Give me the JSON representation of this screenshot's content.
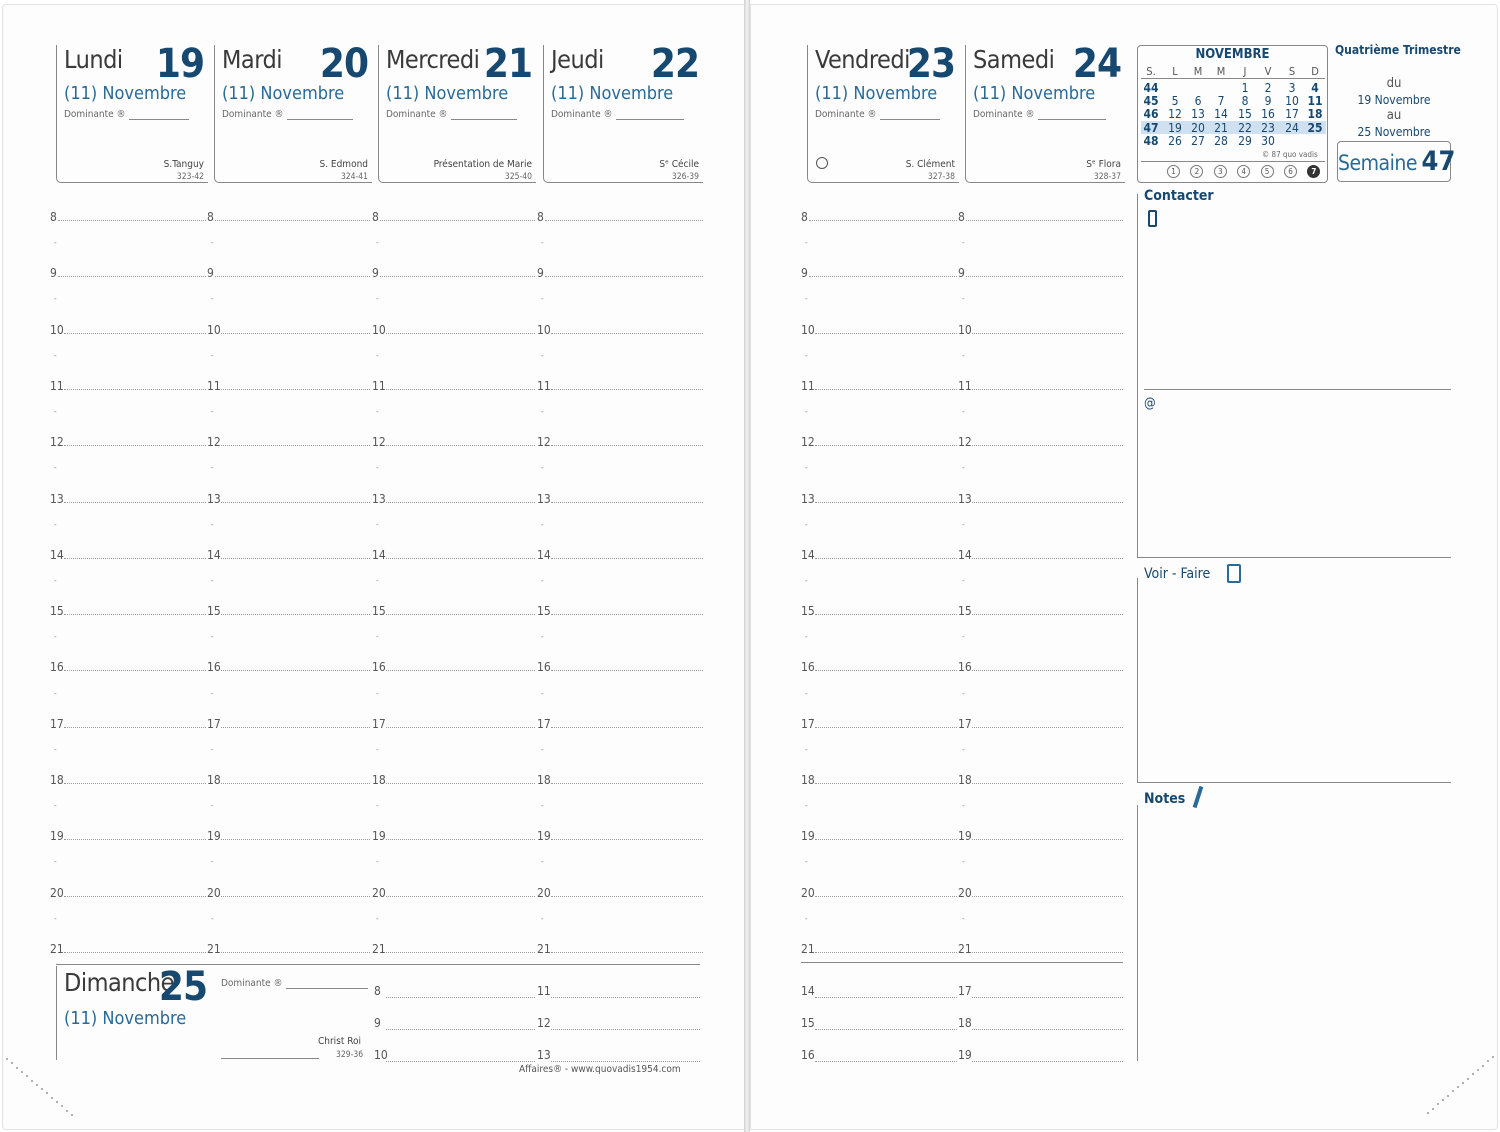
{
  "days": [
    {
      "name": "Lundi",
      "num": "19",
      "month": "(11) Novembre",
      "dominante": "Dominante ®",
      "saint": "S.Tanguy",
      "code": "323-42"
    },
    {
      "name": "Mardi",
      "num": "20",
      "month": "(11) Novembre",
      "dominante": "Dominante ®",
      "saint": "S. Edmond",
      "code": "324-41"
    },
    {
      "name": "Mercredi",
      "num": "21",
      "month": "(11) Novembre",
      "dominante": "Dominante ®",
      "saint": "Présentation de Marie",
      "code": "325-40"
    },
    {
      "name": "Jeudi",
      "num": "22",
      "month": "(11) Novembre",
      "dominante": "Dominante ®",
      "saint": "Sᵉ Cécile",
      "code": "326-39"
    },
    {
      "name": "Vendredi",
      "num": "23",
      "month": "(11) Novembre",
      "dominante": "Dominante ®",
      "saint": "S. Clément",
      "code": "327-38"
    },
    {
      "name": "Samedi",
      "num": "24",
      "month": "(11) Novembre",
      "dominante": "Dominante ®",
      "saint": "Sᵉ Flora",
      "code": "328-37"
    }
  ],
  "hours": [
    "8",
    "9",
    "10",
    "11",
    "12",
    "13",
    "14",
    "15",
    "16",
    "17",
    "18",
    "19",
    "20",
    "21"
  ],
  "half_mark": "-",
  "sunday": {
    "name": "Dimanche",
    "num": "25",
    "month": "(11) Novembre",
    "dominante": "Dominante ®",
    "saint": "Christ Roi",
    "code": "329-36",
    "hours_col1": [
      "8",
      "9",
      "10"
    ],
    "hours_col2": [
      "11",
      "12",
      "13"
    ]
  },
  "weekend_extra": {
    "hours_col1": [
      "14",
      "15",
      "16"
    ],
    "hours_col2": [
      "17",
      "18",
      "19"
    ]
  },
  "footer": "Affaires® - www.quovadis1954.com",
  "mini_calendar": {
    "month": "NOVEMBRE",
    "headers": [
      "S.",
      "L",
      "M",
      "M",
      "J",
      "V",
      "S",
      "D"
    ],
    "rows": [
      [
        "44",
        "",
        "",
        "",
        "1",
        "2",
        "3",
        "4"
      ],
      [
        "45",
        "5",
        "6",
        "7",
        "8",
        "9",
        "10",
        "11"
      ],
      [
        "46",
        "12",
        "13",
        "14",
        "15",
        "16",
        "17",
        "18"
      ],
      [
        "47",
        "19",
        "20",
        "21",
        "22",
        "23",
        "24",
        "25"
      ],
      [
        "48",
        "26",
        "27",
        "28",
        "29",
        "30",
        "",
        ""
      ]
    ],
    "copyright": "© 87 quo vadis",
    "circles": [
      "1",
      "2",
      "3",
      "4",
      "5",
      "6",
      "7"
    ]
  },
  "quarter": {
    "title": "Quatrième Trimestre",
    "du": "du",
    "from": "19 Novembre",
    "au": "au",
    "to": "25 Novembre",
    "semaine_label": "Semaine",
    "semaine_num": "47"
  },
  "sections": {
    "contacter": "Contacter",
    "at": "@",
    "voir_faire": "Voir - Faire",
    "notes": "Notes"
  },
  "colors": {
    "accent": "#17486f",
    "month": "#2a6a96",
    "highlight": "#cfe0f0"
  }
}
